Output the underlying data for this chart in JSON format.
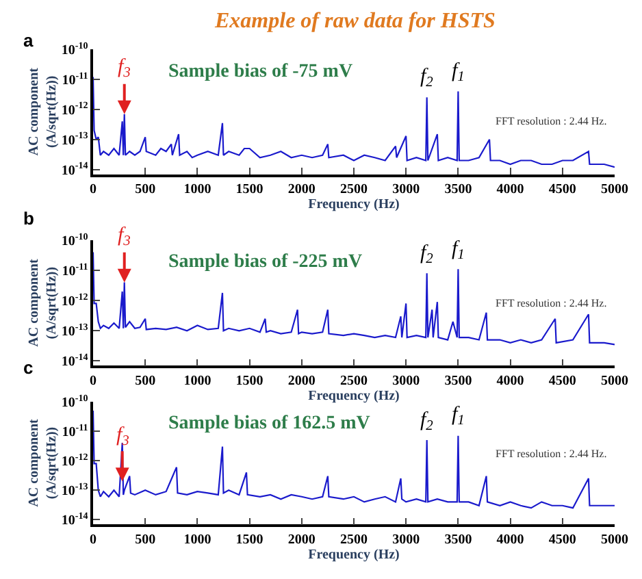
{
  "chart_data": [
    {
      "type": "line",
      "title": "Example of raw data for HSTS",
      "xlabel": "Frequency (Hz)",
      "ylabel": "AC component\n(A/sqrt(Hz))",
      "log": "y",
      "xlim": [
        0,
        5000
      ],
      "xticks": [
        0,
        500,
        1000,
        1500,
        2000,
        2500,
        3000,
        3500,
        4000,
        4500,
        5000
      ],
      "ylim": [
        7e-15,
        1e-10
      ],
      "yticks": [
        {
          "value": 1e-14,
          "label": "10$^{-14}$"
        },
        {
          "value": 1e-13,
          "label": "10$^{-13}$"
        },
        {
          "value": 1e-12,
          "label": "10$^{-12}$"
        },
        {
          "value": 1e-11,
          "label": "10$^{-11}$"
        },
        {
          "value": 1e-10,
          "label": "10$^{-10}$"
        }
      ],
      "annotations": [
        "a",
        "Sample bias of -75 mV",
        "FFT resolution : 2.44 Hz.",
        {
          "text": "f$_{3}$",
          "x": 300,
          "y": 7e-13
        },
        {
          "text": "f$_{2}$",
          "x": 3200,
          "y": 2.5e-12
        },
        {
          "text": "f$_{1}$",
          "x": 3500,
          "y": 4e-12
        }
      ],
      "x": [
        0,
        10,
        30,
        50,
        70,
        100,
        150,
        200,
        250,
        280,
        290,
        300,
        310,
        350,
        400,
        450,
        500,
        510,
        600,
        650,
        700,
        750,
        760,
        820,
        830,
        900,
        950,
        1000,
        1100,
        1200,
        1240,
        1250,
        1300,
        1400,
        1450,
        1500,
        1600,
        1700,
        1800,
        1900,
        2000,
        2100,
        2200,
        2250,
        2260,
        2400,
        2500,
        2600,
        2700,
        2800,
        2900,
        2910,
        3000,
        3010,
        3100,
        3190,
        3200,
        3210,
        3300,
        3310,
        3400,
        3490,
        3500,
        3510,
        3600,
        3700,
        3800,
        3810,
        3900,
        4000,
        4100,
        4200,
        4300,
        4400,
        4500,
        4600,
        4750,
        4760,
        4900,
        5000
      ],
      "series": [
        {
          "color": "#1a1acc",
          "values": [
            1.2e-11,
            2e-13,
            1e-13,
            1.2e-13,
            3e-14,
            4e-14,
            3e-14,
            5e-14,
            3e-14,
            4e-13,
            3e-14,
            7e-13,
            3e-14,
            4e-14,
            3e-14,
            4e-14,
            1.2e-13,
            4e-14,
            3e-14,
            5e-14,
            4e-14,
            7e-14,
            3e-14,
            1.5e-13,
            3e-14,
            4e-14,
            2.5e-14,
            3e-14,
            4e-14,
            3e-14,
            3.5e-13,
            3e-14,
            4e-14,
            3e-14,
            5e-14,
            5e-14,
            2.5e-14,
            3e-14,
            4e-14,
            2.5e-14,
            3e-14,
            2.5e-14,
            3e-14,
            7e-14,
            2.5e-14,
            3e-14,
            2e-14,
            3e-14,
            2.5e-14,
            2e-14,
            6e-14,
            2.5e-14,
            1.3e-13,
            2e-14,
            2.5e-14,
            2e-14,
            2.5e-12,
            2e-14,
            1.5e-13,
            2e-14,
            2.5e-14,
            2e-14,
            4e-12,
            2e-14,
            2e-14,
            2.5e-14,
            1e-13,
            2e-14,
            2e-14,
            1.5e-14,
            2e-14,
            2e-14,
            1.5e-14,
            1.5e-14,
            2e-14,
            2e-14,
            4e-14,
            1.5e-14,
            1.5e-14,
            1.2e-14
          ]
        }
      ]
    },
    {
      "type": "line",
      "xlabel": "Frequency (Hz)",
      "ylabel": "AC component\n(A/sqrt(Hz))",
      "log": "y",
      "xlim": [
        0,
        5000
      ],
      "xticks": [
        0,
        500,
        1000,
        1500,
        2000,
        2500,
        3000,
        3500,
        4000,
        4500,
        5000
      ],
      "ylim": [
        7e-15,
        1e-10
      ],
      "yticks": [
        {
          "value": 1e-14,
          "label": "10$^{-14}$"
        },
        {
          "value": 1e-13,
          "label": "10$^{-13}$"
        },
        {
          "value": 1e-12,
          "label": "10$^{-12}$"
        },
        {
          "value": 1e-11,
          "label": "10$^{-11}$"
        },
        {
          "value": 1e-10,
          "label": "10$^{-10}$"
        }
      ],
      "annotations": [
        "b",
        "Sample bias of -225 mV",
        "FFT resolution : 2.44 Hz.",
        {
          "text": "f$_{3}$",
          "x": 300,
          "y": 4e-12
        },
        {
          "text": "f$_{2}$",
          "x": 3200,
          "y": 8e-12
        },
        {
          "text": "f$_{1}$",
          "x": 3500,
          "y": 1.1e-11
        }
      ],
      "x": [
        0,
        10,
        30,
        50,
        70,
        100,
        150,
        200,
        250,
        280,
        290,
        300,
        310,
        350,
        400,
        450,
        500,
        510,
        600,
        700,
        800,
        900,
        1000,
        1100,
        1200,
        1240,
        1250,
        1300,
        1400,
        1500,
        1600,
        1650,
        1660,
        1700,
        1800,
        1900,
        1960,
        1970,
        2000,
        2100,
        2200,
        2250,
        2260,
        2400,
        2500,
        2600,
        2700,
        2800,
        2900,
        2950,
        2960,
        3000,
        3010,
        3100,
        3190,
        3200,
        3210,
        3250,
        3260,
        3300,
        3310,
        3400,
        3450,
        3490,
        3500,
        3510,
        3600,
        3700,
        3770,
        3780,
        3900,
        4000,
        4100,
        4200,
        4300,
        4430,
        4440,
        4600,
        4750,
        4760,
        4900,
        5000
      ],
      "series": [
        {
          "color": "#1a1acc",
          "values": [
            4e-11,
            8e-13,
            8e-13,
            2e-13,
            1.2e-13,
            1.5e-13,
            1.2e-13,
            1.8e-13,
            1.2e-13,
            2e-12,
            1.2e-13,
            4e-12,
            1.3e-13,
            2e-13,
            1.2e-13,
            1.3e-13,
            2.5e-13,
            1.1e-13,
            1.2e-13,
            1.1e-13,
            1.3e-13,
            1e-13,
            1.5e-13,
            1.1e-13,
            1.2e-13,
            1.8e-12,
            1e-13,
            1.2e-13,
            1e-13,
            1.2e-13,
            9e-14,
            2.5e-13,
            9e-14,
            1e-13,
            8e-14,
            9e-14,
            5e-13,
            8e-14,
            9e-14,
            8e-14,
            9e-14,
            5e-13,
            8e-14,
            7e-14,
            8e-14,
            7e-14,
            6e-14,
            7e-14,
            6e-14,
            3e-13,
            6e-14,
            8e-13,
            6e-14,
            7e-14,
            6e-14,
            8e-12,
            6e-14,
            5e-13,
            6e-14,
            9e-13,
            6e-14,
            5e-14,
            2e-13,
            6e-14,
            1.1e-11,
            6e-14,
            6e-14,
            5e-14,
            4e-13,
            5e-14,
            5e-14,
            4e-14,
            5e-14,
            4e-14,
            5e-14,
            2.5e-13,
            4e-14,
            5e-14,
            3.5e-13,
            4e-14,
            4e-14,
            3.5e-14
          ]
        }
      ]
    },
    {
      "type": "line",
      "xlabel": "Frequency (Hz)",
      "ylabel": "AC component\n(A/sqrt(Hz))",
      "log": "y",
      "xlim": [
        0,
        5000
      ],
      "xticks": [
        0,
        500,
        1000,
        1500,
        2000,
        2500,
        3000,
        3500,
        4000,
        4500,
        5000
      ],
      "ylim": [
        7e-15,
        1e-10
      ],
      "yticks": [
        {
          "value": 1e-14,
          "label": "10$^{-14}$"
        },
        {
          "value": 1e-13,
          "label": "10$^{-13}$"
        },
        {
          "value": 1e-12,
          "label": "10$^{-12}$"
        },
        {
          "value": 1e-11,
          "label": "10$^{-11}$"
        },
        {
          "value": 1e-10,
          "label": "10$^{-10}$"
        }
      ],
      "annotations": [
        "c",
        "Sample bias of 162.5 mV",
        "FFT resolution : 2.44 Hz.",
        {
          "text": "f$_{3}$",
          "x": 280,
          "y": 2e-13
        },
        {
          "text": "f$_{2}$",
          "x": 3200,
          "y": 5e-12
        },
        {
          "text": "f$_{1}$",
          "x": 3500,
          "y": 7e-12
        }
      ],
      "x": [
        0,
        10,
        30,
        50,
        70,
        100,
        150,
        200,
        250,
        280,
        290,
        300,
        350,
        360,
        400,
        500,
        600,
        700,
        800,
        810,
        900,
        1000,
        1100,
        1200,
        1240,
        1250,
        1300,
        1400,
        1470,
        1480,
        1600,
        1700,
        1800,
        1900,
        2000,
        2100,
        2200,
        2250,
        2260,
        2400,
        2500,
        2600,
        2700,
        2800,
        2900,
        2950,
        2960,
        3000,
        3100,
        3190,
        3200,
        3210,
        3300,
        3400,
        3490,
        3500,
        3510,
        3600,
        3700,
        3770,
        3780,
        3900,
        4000,
        4100,
        4200,
        4300,
        4400,
        4500,
        4600,
        4750,
        4760,
        4900,
        5000
      ],
      "series": [
        {
          "color": "#1a1acc",
          "values": [
            5e-11,
            8e-13,
            8e-13,
            1e-13,
            6e-14,
            9e-14,
            6e-14,
            1e-13,
            6e-14,
            4e-12,
            7e-14,
            1e-13,
            3e-13,
            8e-14,
            7e-14,
            1e-13,
            7e-14,
            9e-14,
            6e-13,
            8e-14,
            7e-14,
            9e-14,
            8e-14,
            7e-14,
            3e-12,
            8e-14,
            1e-13,
            7e-14,
            4e-13,
            7e-14,
            6e-14,
            7e-14,
            5e-14,
            7e-14,
            6e-14,
            5e-14,
            6e-14,
            3e-13,
            6e-14,
            5e-14,
            6e-14,
            4e-14,
            5e-14,
            6e-14,
            4e-14,
            2.5e-13,
            5e-14,
            4e-14,
            5e-14,
            4e-14,
            5e-12,
            4e-14,
            5e-14,
            4e-14,
            4e-14,
            7e-12,
            4e-14,
            4e-14,
            3e-14,
            3e-13,
            4e-14,
            3e-14,
            4e-14,
            3e-14,
            2.5e-14,
            4e-14,
            3e-14,
            3e-14,
            2.5e-14,
            2.5e-13,
            3e-14,
            3e-14,
            3e-14
          ]
        }
      ]
    }
  ]
}
